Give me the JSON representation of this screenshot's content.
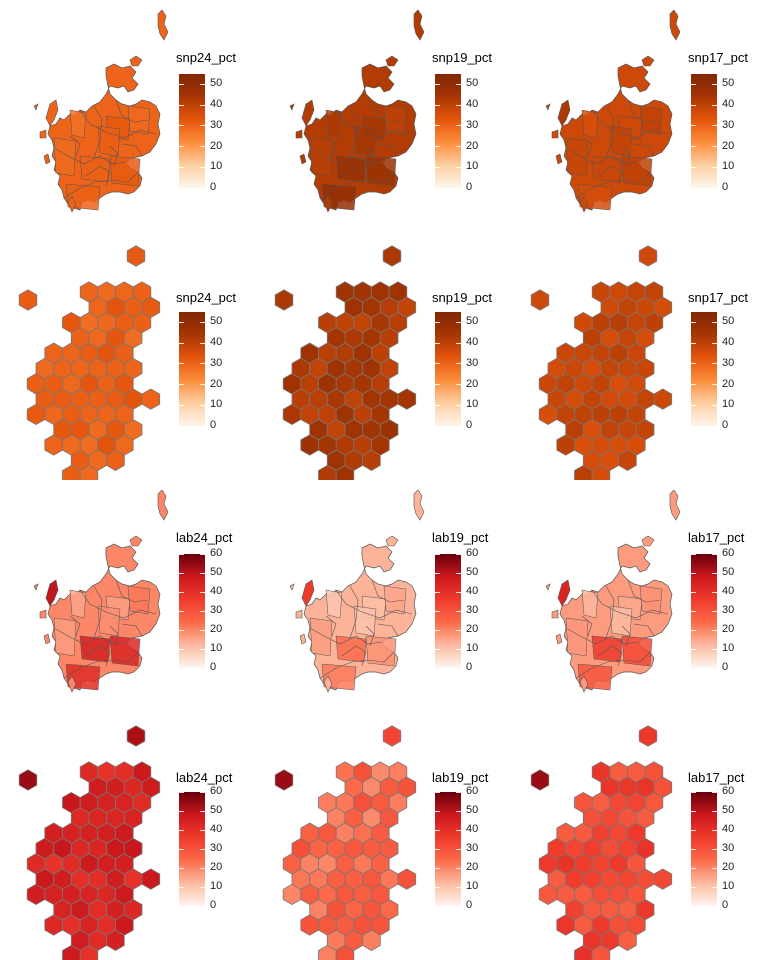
{
  "panels": [
    {
      "kind": "geo",
      "title": "snp24_pct",
      "scale": "orange",
      "max": 55,
      "ticks": [
        "0",
        "10",
        "20",
        "30",
        "40",
        "50"
      ],
      "mean": 0.55,
      "var": 0.05,
      "west": 0.55,
      "central": 0.55
    },
    {
      "kind": "geo",
      "title": "snp19_pct",
      "scale": "orange",
      "max": 55,
      "ticks": [
        "0",
        "10",
        "20",
        "30",
        "40",
        "50"
      ],
      "mean": 0.76,
      "var": 0.07,
      "west": 0.76,
      "central": 0.85
    },
    {
      "kind": "geo",
      "title": "snp17_pct",
      "scale": "orange",
      "max": 55,
      "ticks": [
        "0",
        "10",
        "20",
        "30",
        "40",
        "50"
      ],
      "mean": 0.68,
      "var": 0.05,
      "west": 0.78,
      "central": 0.68
    },
    {
      "kind": "hex",
      "title": "snp24_pct",
      "scale": "orange",
      "max": 55,
      "ticks": [
        "0",
        "10",
        "20",
        "30",
        "40",
        "50"
      ],
      "mean": 0.56,
      "var": 0.05,
      "top": 0.58
    },
    {
      "kind": "hex",
      "title": "snp19_pct",
      "scale": "orange",
      "max": 55,
      "ticks": [
        "0",
        "10",
        "20",
        "30",
        "40",
        "50"
      ],
      "mean": 0.78,
      "var": 0.07,
      "top": 0.78
    },
    {
      "kind": "hex",
      "title": "snp17_pct",
      "scale": "orange",
      "max": 55,
      "ticks": [
        "0",
        "10",
        "20",
        "30",
        "40",
        "50"
      ],
      "mean": 0.69,
      "var": 0.05,
      "top": 0.68
    },
    {
      "kind": "geo",
      "title": "lab24_pct",
      "scale": "red",
      "max": 60,
      "ticks": [
        "0",
        "10",
        "20",
        "30",
        "40",
        "50",
        "60"
      ],
      "mean": 0.33,
      "var": 0.1,
      "west": 0.82,
      "central": 0.7
    },
    {
      "kind": "geo",
      "title": "lab19_pct",
      "scale": "red",
      "max": 60,
      "ticks": [
        "0",
        "10",
        "20",
        "30",
        "40",
        "50",
        "60"
      ],
      "mean": 0.22,
      "var": 0.06,
      "west": 0.6,
      "central": 0.35
    },
    {
      "kind": "geo",
      "title": "lab17_pct",
      "scale": "red",
      "max": 60,
      "ticks": [
        "0",
        "10",
        "20",
        "30",
        "40",
        "50",
        "60"
      ],
      "mean": 0.28,
      "var": 0.08,
      "west": 0.72,
      "central": 0.55
    },
    {
      "kind": "hex",
      "title": "lab24_pct",
      "scale": "red",
      "max": 60,
      "ticks": [
        "0",
        "10",
        "20",
        "30",
        "40",
        "50",
        "60"
      ],
      "mean": 0.72,
      "var": 0.09,
      "top": 0.86
    },
    {
      "kind": "hex",
      "title": "lab19_pct",
      "scale": "red",
      "max": 60,
      "ticks": [
        "0",
        "10",
        "20",
        "30",
        "40",
        "50",
        "60"
      ],
      "mean": 0.42,
      "var": 0.1,
      "top": 0.55
    },
    {
      "kind": "hex",
      "title": "lab17_pct",
      "scale": "red",
      "max": 60,
      "ticks": [
        "0",
        "10",
        "20",
        "30",
        "40",
        "50",
        "60"
      ],
      "mean": 0.55,
      "var": 0.1,
      "top": 0.62
    }
  ],
  "colors": {
    "orange": [
      "#fff5eb",
      "#fdd0a2",
      "#fd8d3c",
      "#e6550d",
      "#a63603",
      "#7f2704"
    ],
    "red": [
      "#fff5f0",
      "#fcbba1",
      "#fb6a4a",
      "#ef3b2c",
      "#cb181d",
      "#67000d"
    ]
  }
}
